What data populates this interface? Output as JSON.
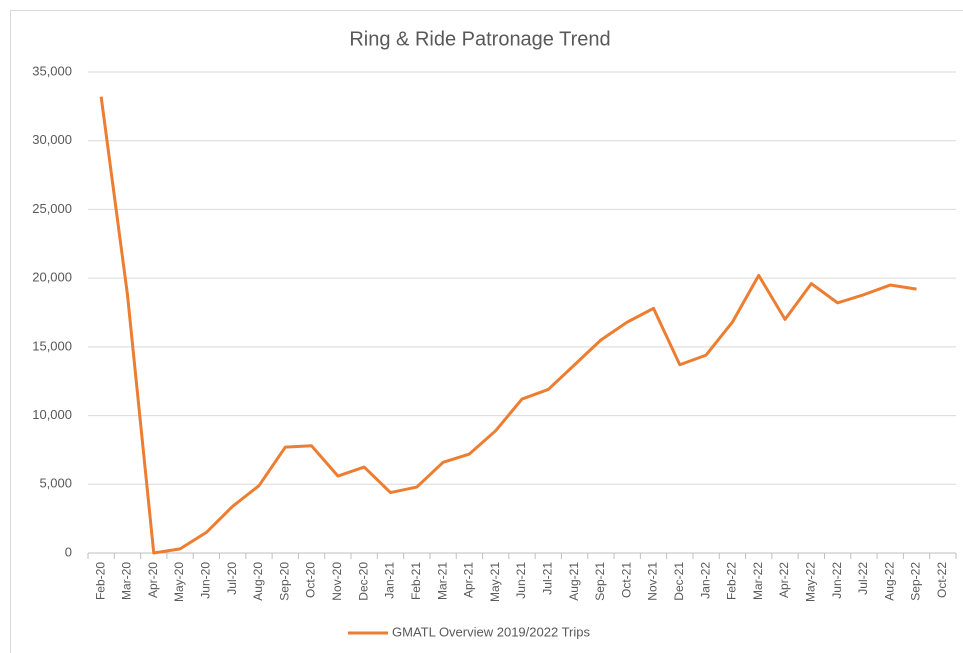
{
  "chart_data": {
    "type": "line",
    "title": "Ring & Ride Patronage Trend",
    "categories": [
      "Feb-20",
      "Mar-20",
      "Apr-20",
      "May-20",
      "Jun-20",
      "Jul-20",
      "Aug-20",
      "Sep-20",
      "Oct-20",
      "Nov-20",
      "Dec-20",
      "Jan-21",
      "Feb-21",
      "Mar-21",
      "Apr-21",
      "May-21",
      "Jun-21",
      "Jul-21",
      "Aug-21",
      "Sep-21",
      "Oct-21",
      "Nov-21",
      "Dec-21",
      "Jan-22",
      "Feb-22",
      "Mar-22",
      "Apr-22",
      "May-22",
      "Jun-22",
      "Jul-22",
      "Aug-22",
      "Sep-22",
      "Oct-22"
    ],
    "series": [
      {
        "name": "GMATL Overview 2019/2022 Trips",
        "color": "#ed7d31",
        "values": [
          33200,
          18800,
          0,
          300,
          1500,
          3400,
          4900,
          7700,
          7800,
          5600,
          6250,
          4400,
          4800,
          6600,
          7200,
          8900,
          11200,
          11900,
          13700,
          15500,
          16800,
          17800,
          13700,
          14400,
          16800,
          20200,
          17000,
          19600,
          18200,
          18800,
          19500,
          19200,
          null
        ]
      }
    ],
    "ylim": [
      0,
      35000
    ],
    "yticks": [
      0,
      {
        "value": 5000,
        "label": "5,000"
      },
      {
        "value": 10000,
        "label": "10,000"
      },
      {
        "value": 15000,
        "label": "15,000"
      },
      {
        "value": 20000,
        "label": "20,000"
      },
      {
        "value": 25000,
        "label": "25,000"
      },
      {
        "value": 30000,
        "label": "30,000"
      },
      {
        "value": 35000,
        "label": "35,000"
      }
    ],
    "grid": true,
    "legend": "bottom"
  }
}
